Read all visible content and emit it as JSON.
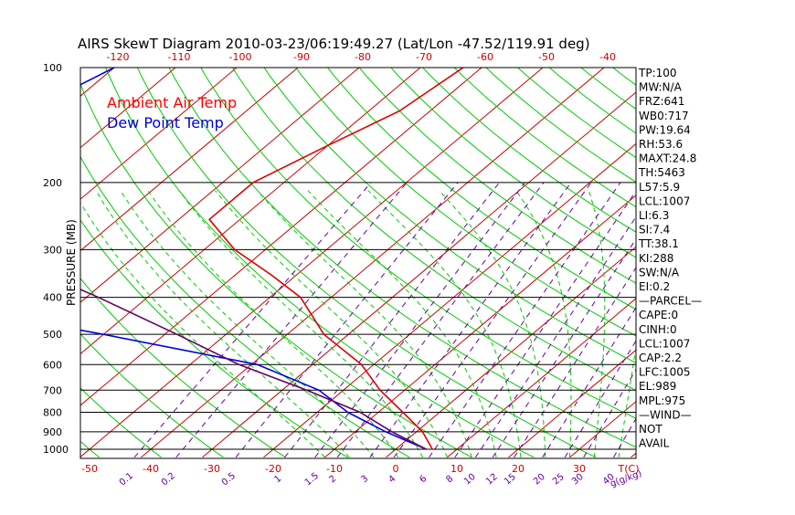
{
  "chart_data": {
    "type": "line",
    "title": "AIRS SkewT Diagram 2010-03-23/06:19:49.27 (Lat/Lon -47.52/119.91 deg)",
    "ylabel": "PRESSURE (MB)",
    "pressure_ticks": [
      100,
      200,
      300,
      400,
      500,
      600,
      700,
      800,
      900,
      1000
    ],
    "top_temp_ticks": [
      -120,
      -110,
      -100,
      -90,
      -80,
      -70,
      -60,
      -50,
      -40
    ],
    "bottom_temp_ticks": [
      -50,
      -40,
      -30,
      -20,
      -10,
      0,
      10,
      20,
      30
    ],
    "bottom_temp_unit": "T(C)",
    "mixing_ratio_labels": [
      "0.1",
      "0.2",
      "0.5",
      "1",
      "1.5",
      "2",
      "3",
      "4",
      "6",
      "8",
      "10",
      "12",
      "15",
      "20",
      "25",
      "30",
      "40"
    ],
    "mixing_ratio_unit": "g(g/kg)",
    "legend": [
      "Ambient Air Temp",
      "Dew Point Temp"
    ],
    "series": [
      {
        "name": "Ambient Air Temp",
        "color": "#dd0000",
        "points": [
          {
            "p": 100,
            "t": -63
          },
          {
            "p": 130,
            "t": -65
          },
          {
            "p": 160,
            "t": -70
          },
          {
            "p": 200,
            "t": -75
          },
          {
            "p": 250,
            "t": -75
          },
          {
            "p": 300,
            "t": -65
          },
          {
            "p": 350,
            "t": -54
          },
          {
            "p": 400,
            "t": -45
          },
          {
            "p": 500,
            "t": -34
          },
          {
            "p": 600,
            "t": -22
          },
          {
            "p": 700,
            "t": -14
          },
          {
            "p": 800,
            "t": -6
          },
          {
            "p": 900,
            "t": 1
          },
          {
            "p": 1000,
            "t": 6
          }
        ]
      },
      {
        "name": "Dew Point Temp",
        "color": "#0000dd",
        "points": [
          {
            "p": 100,
            "t": -120
          },
          {
            "p": 160,
            "t": -130
          },
          {
            "p": 200,
            "t": -130
          },
          {
            "p": 250,
            "t": -129
          },
          {
            "p": 300,
            "t": -123
          },
          {
            "p": 400,
            "t": -110
          },
          {
            "p": 500,
            "t": -70
          },
          {
            "p": 600,
            "t": -39
          },
          {
            "p": 700,
            "t": -24
          },
          {
            "p": 800,
            "t": -15
          },
          {
            "p": 900,
            "t": -5
          },
          {
            "p": 1000,
            "t": 5
          }
        ]
      },
      {
        "name": "",
        "color": "#660066",
        "points": [
          {
            "p": 100,
            "t": -171
          },
          {
            "p": 150,
            "t": -150
          },
          {
            "p": 200,
            "t": -131
          },
          {
            "p": 300,
            "t": -105
          },
          {
            "p": 400,
            "t": -78
          },
          {
            "p": 500,
            "t": -58
          },
          {
            "p": 600,
            "t": -42
          },
          {
            "p": 700,
            "t": -26
          },
          {
            "p": 800,
            "t": -13
          },
          {
            "p": 900,
            "t": -4
          },
          {
            "p": 1000,
            "t": 5
          }
        ]
      }
    ],
    "stats": [
      "TP:100",
      "MW:N/A",
      "FRZ:641",
      "WB0:717",
      "PW:19.64",
      "RH:53.6",
      "MAXT:24.8",
      "TH:5463",
      "L57:5.9",
      "LCL:1007",
      "LI:6.3",
      "SI:7.4",
      "TT:38.1",
      "KI:288",
      "SW:N/A",
      "EI:0.2",
      "—PARCEL—",
      "CAPE:0",
      "CINH:0",
      "LCL:1007",
      "CAP:2.2",
      "LFC:1005",
      "EL:989",
      "MPL:975",
      "—WIND—",
      "NOT",
      "AVAIL"
    ],
    "colors": {
      "isotherm": "#cc0000",
      "dry_adiabat": "#00cc00",
      "moist_adiabat": "#00cc00",
      "mixing_ratio": "#660099",
      "isobar": "#000000"
    }
  }
}
